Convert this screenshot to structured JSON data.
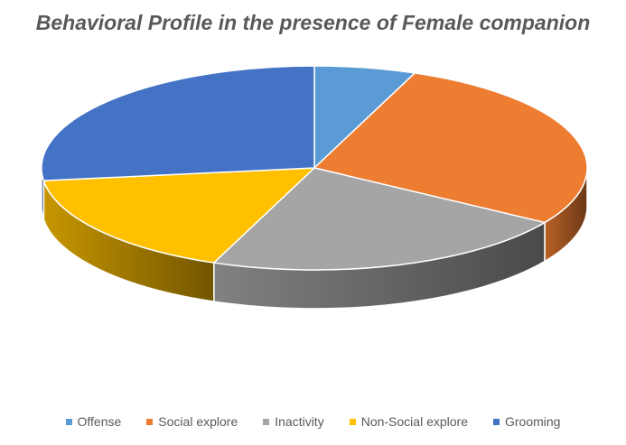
{
  "chart_data": {
    "type": "pie",
    "style": "3d",
    "title": "Behavioral Profile in the presence of Female companion",
    "categories": [
      "Offense",
      "Social explore",
      "Inactivity",
      "Non-Social explore",
      "Grooming"
    ],
    "values": [
      6,
      28,
      22,
      17,
      27
    ],
    "colors": [
      "#5B9BD5",
      "#ED7D31",
      "#A5A5A5",
      "#FFC000",
      "#4472C4"
    ],
    "legend_position": "bottom"
  }
}
